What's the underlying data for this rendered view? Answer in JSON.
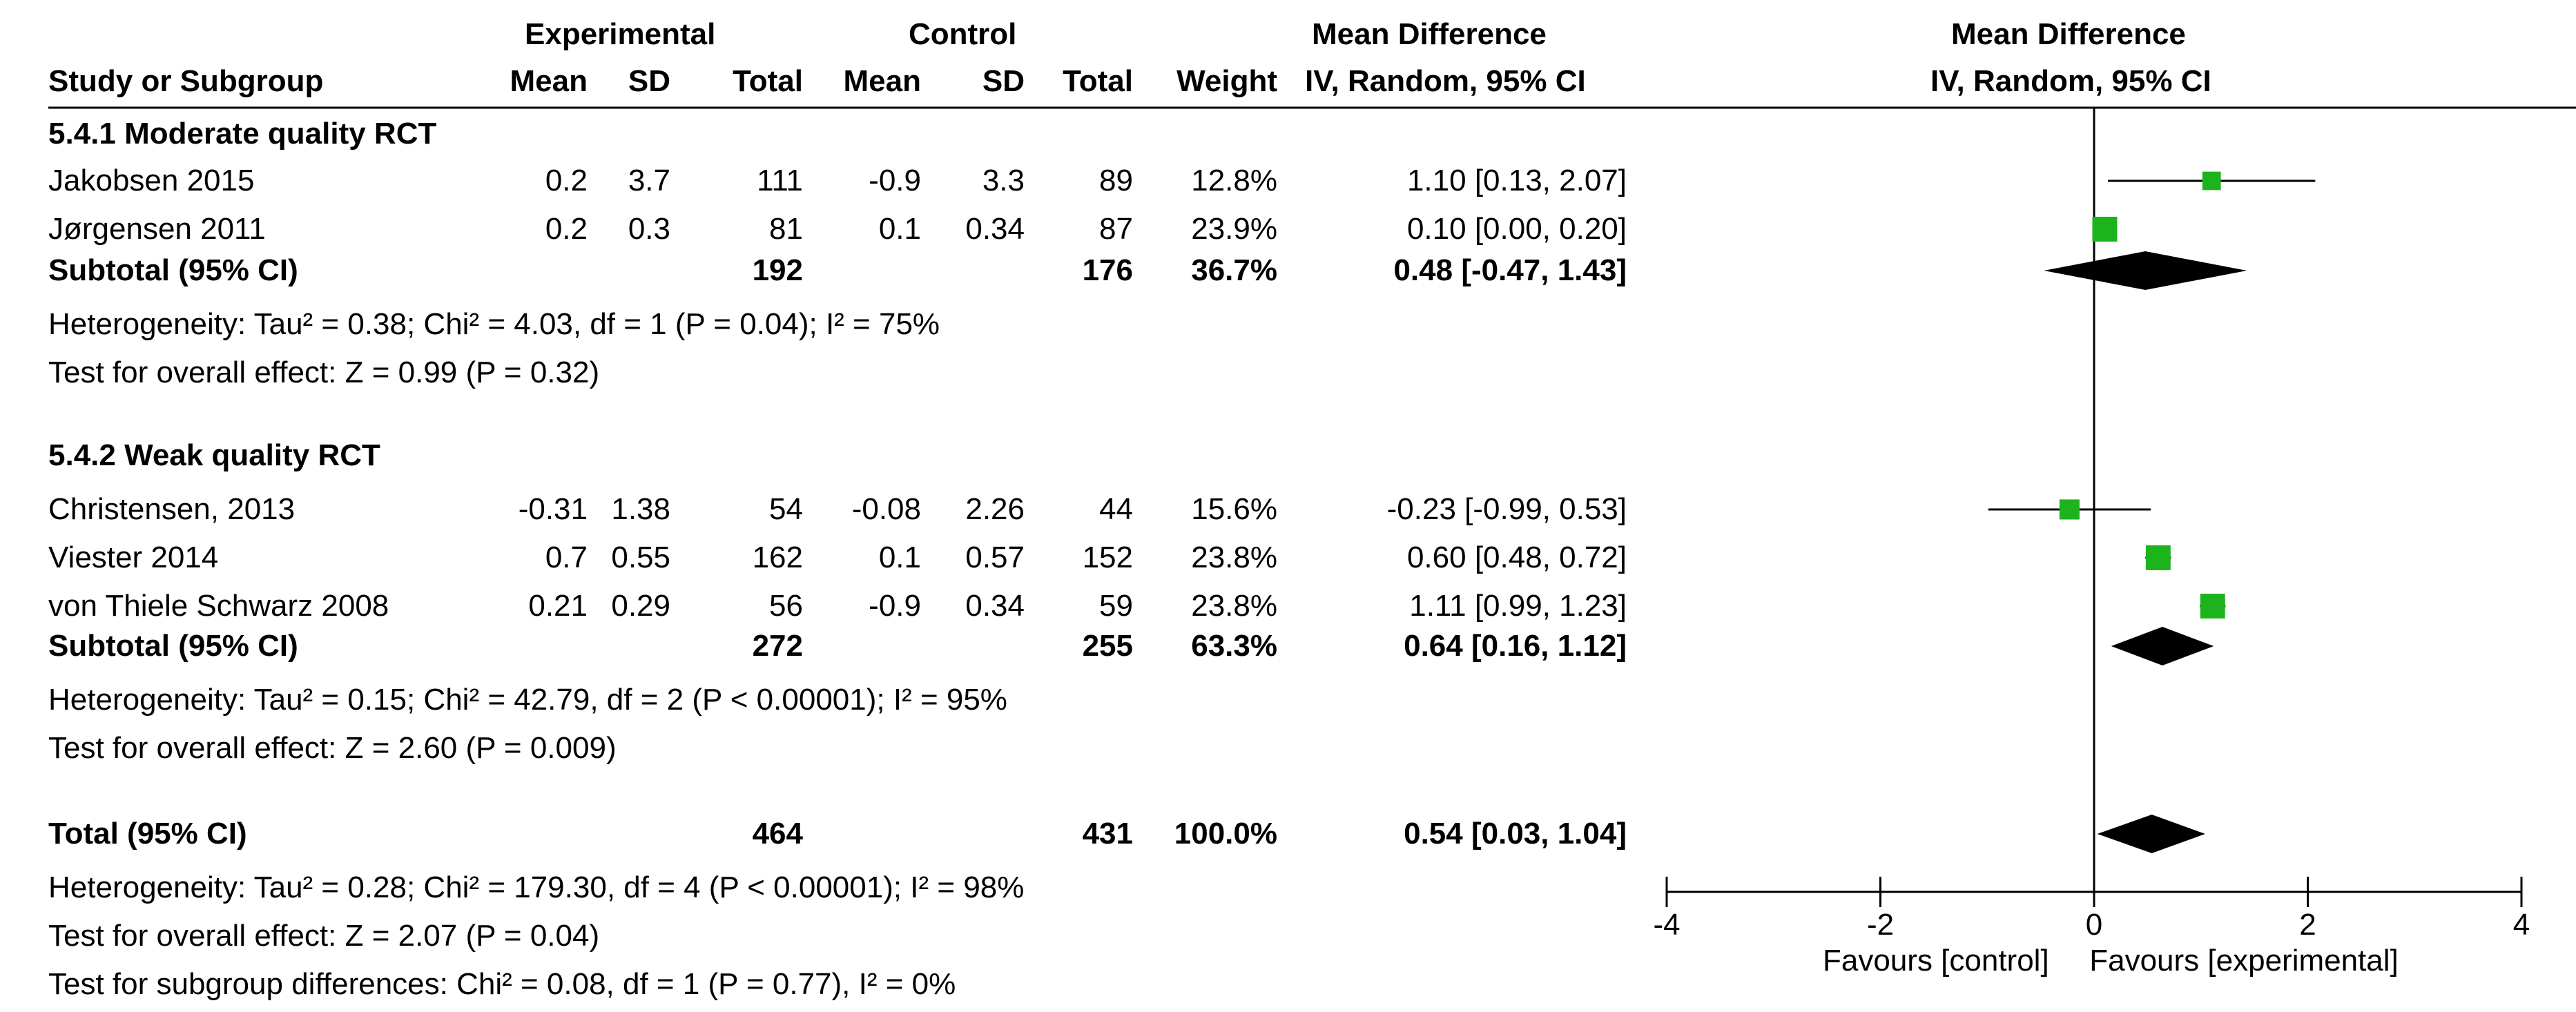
{
  "header": {
    "experimental": "Experimental",
    "control": "Control",
    "mean_difference": "Mean Difference",
    "study_or_subgroup": "Study or Subgroup",
    "mean": "Mean",
    "sd": "SD",
    "total": "Total",
    "weight": "Weight",
    "method": "IV, Random, 95% CI",
    "plot_title": "Mean Difference",
    "plot_method": "IV, Random, 95% CI"
  },
  "groups": [
    {
      "title": "5.4.1 Moderate quality RCT",
      "studies": [
        {
          "name": "Jakobsen 2015",
          "e_mean": "0.2",
          "e_sd": "3.7",
          "e_total": "111",
          "c_mean": "-0.9",
          "c_sd": "3.3",
          "c_total": "89",
          "weight": "12.8%",
          "ci": "1.10 [0.13, 2.07]"
        },
        {
          "name": "Jørgensen 2011",
          "e_mean": "0.2",
          "e_sd": "0.3",
          "e_total": "81",
          "c_mean": "0.1",
          "c_sd": "0.34",
          "c_total": "87",
          "weight": "23.9%",
          "ci": "0.10 [0.00, 0.20]"
        }
      ],
      "subtotal": {
        "label": "Subtotal (95% CI)",
        "e_total": "192",
        "c_total": "176",
        "weight": "36.7%",
        "ci": "0.48 [-0.47, 1.43]"
      },
      "heterogeneity": "Heterogeneity: Tau² = 0.38; Chi² = 4.03, df = 1 (P = 0.04); I² = 75%",
      "overall": "Test for overall effect: Z = 0.99 (P = 0.32)"
    },
    {
      "title": "5.4.2 Weak quality RCT",
      "studies": [
        {
          "name": "Christensen, 2013",
          "e_mean": "-0.31",
          "e_sd": "1.38",
          "e_total": "54",
          "c_mean": "-0.08",
          "c_sd": "2.26",
          "c_total": "44",
          "weight": "15.6%",
          "ci": "-0.23 [-0.99, 0.53]"
        },
        {
          "name": "Viester 2014",
          "e_mean": "0.7",
          "e_sd": "0.55",
          "e_total": "162",
          "c_mean": "0.1",
          "c_sd": "0.57",
          "c_total": "152",
          "weight": "23.8%",
          "ci": "0.60 [0.48, 0.72]"
        },
        {
          "name": "von Thiele Schwarz 2008",
          "e_mean": "0.21",
          "e_sd": "0.29",
          "e_total": "56",
          "c_mean": "-0.9",
          "c_sd": "0.34",
          "c_total": "59",
          "weight": "23.8%",
          "ci": "1.11 [0.99, 1.23]"
        }
      ],
      "subtotal": {
        "label": "Subtotal (95% CI)",
        "e_total": "272",
        "c_total": "255",
        "weight": "63.3%",
        "ci": "0.64 [0.16, 1.12]"
      },
      "heterogeneity": "Heterogeneity: Tau² = 0.15; Chi² = 42.79, df = 2 (P < 0.00001); I² = 95%",
      "overall": "Test for overall effect: Z = 2.60 (P = 0.009)"
    }
  ],
  "total": {
    "label": "Total (95% CI)",
    "e_total": "464",
    "c_total": "431",
    "weight": "100.0%",
    "ci": "0.54 [0.03, 1.04]",
    "heterogeneity": "Heterogeneity: Tau² = 0.28; Chi² = 179.30, df = 4 (P < 0.00001); I² = 98%",
    "overall": "Test for overall effect: Z = 2.07 (P = 0.04)",
    "subgroup": "Test for subgroup differences: Chi² = 0.08, df = 1 (P = 0.77), I² = 0%"
  },
  "axis": {
    "ticks": [
      "-4",
      "-2",
      "0",
      "2",
      "4"
    ],
    "favours_left": "Favours [control]",
    "favours_right": "Favours [experimental]"
  },
  "colors": {
    "marker": "#1db31d",
    "diamond": "#000000",
    "line": "#000000"
  },
  "chart_data": {
    "type": "forest",
    "title": "Mean Difference",
    "xlabel": "IV, Random, 95% CI",
    "xlim": [
      -4,
      4
    ],
    "xticks": [
      -4,
      -2,
      0,
      2,
      4
    ],
    "studies": [
      {
        "name": "Jakobsen 2015",
        "est": 1.1,
        "lo": 0.13,
        "hi": 2.07,
        "weight": 12.8
      },
      {
        "name": "Jørgensen 2011",
        "est": 0.1,
        "lo": 0.0,
        "hi": 0.2,
        "weight": 23.9
      },
      {
        "name": "Christensen, 2013",
        "est": -0.23,
        "lo": -0.99,
        "hi": 0.53,
        "weight": 15.6
      },
      {
        "name": "Viester 2014",
        "est": 0.6,
        "lo": 0.48,
        "hi": 0.72,
        "weight": 23.8
      },
      {
        "name": "von Thiele Schwarz 2008",
        "est": 1.11,
        "lo": 0.99,
        "hi": 1.23,
        "weight": 23.8
      }
    ],
    "summaries": [
      {
        "name": "Subtotal 5.4.1",
        "est": 0.48,
        "lo": -0.47,
        "hi": 1.43
      },
      {
        "name": "Subtotal 5.4.2",
        "est": 0.64,
        "lo": 0.16,
        "hi": 1.12
      },
      {
        "name": "Total",
        "est": 0.54,
        "lo": 0.03,
        "hi": 1.04
      }
    ]
  }
}
